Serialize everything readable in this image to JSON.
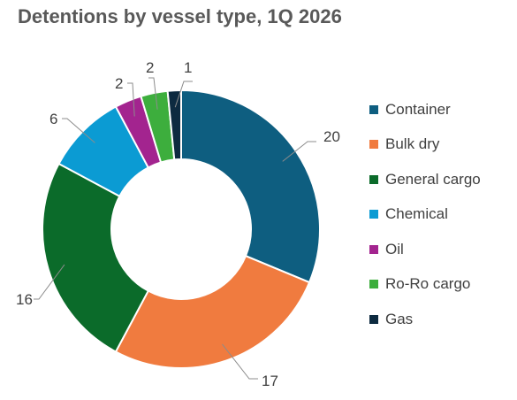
{
  "chart_data": {
    "type": "pie",
    "title": "Detentions by vessel type, 1Q 2026",
    "donut": true,
    "legend_position": "right",
    "categories": [
      "Container",
      "Bulk dry",
      "General cargo",
      "Chemical",
      "Oil",
      "Ro-Ro cargo",
      "Gas"
    ],
    "values": [
      20,
      17,
      16,
      6,
      2,
      2,
      1
    ],
    "colors": [
      "#0E5E80",
      "#F07B3F",
      "#0B6B2A",
      "#0B9BD3",
      "#A3248F",
      "#3DAE3D",
      "#0D2A40"
    ]
  }
}
